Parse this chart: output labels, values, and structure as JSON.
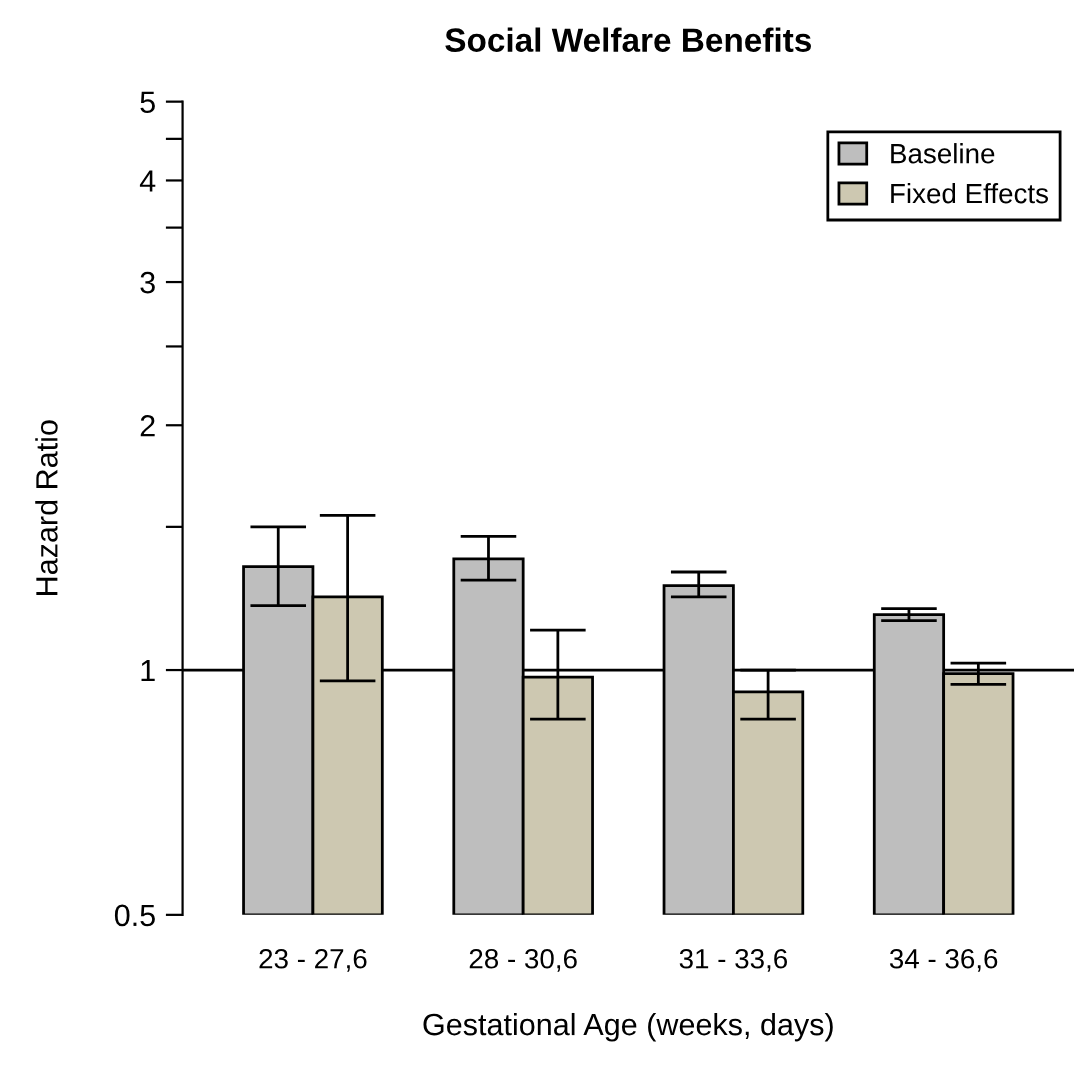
{
  "chart_data": {
    "type": "bar",
    "title": "Social Welfare Benefits",
    "xlabel": "Gestational Age (weeks, days)",
    "ylabel": "Hazard Ratio",
    "categories": [
      "23 - 27,6",
      "28 - 30,6",
      "31 - 33,6",
      "34 - 36,6"
    ],
    "series": [
      {
        "name": "Baseline",
        "color": "#bebebe",
        "values": [
          1.34,
          1.37,
          1.27,
          1.17
        ],
        "errors": [
          [
            1.2,
            1.5
          ],
          [
            1.29,
            1.46
          ],
          [
            1.23,
            1.32
          ],
          [
            1.15,
            1.19
          ]
        ]
      },
      {
        "name": "Fixed Effects",
        "color": "#cdc8b1",
        "values": [
          1.23,
          0.98,
          0.94,
          0.99
        ],
        "errors": [
          [
            0.97,
            1.55
          ],
          [
            0.87,
            1.12
          ],
          [
            0.87,
            1.0
          ],
          [
            0.96,
            1.02
          ]
        ]
      }
    ],
    "log": true,
    "ylim": [
      0.5,
      5
    ],
    "yticks": [
      0.5,
      1,
      {
        "value": 1.5,
        "label": null
      },
      2,
      {
        "value": 2.5,
        "label": null
      },
      3,
      {
        "value": 3.5,
        "label": null
      },
      4,
      {
        "value": 4.5,
        "label": null
      },
      5
    ],
    "ref_lines": [
      {
        "axis": "y",
        "value": 1,
        "color": "#000000"
      }
    ],
    "legend": "top right",
    "grid": false
  }
}
